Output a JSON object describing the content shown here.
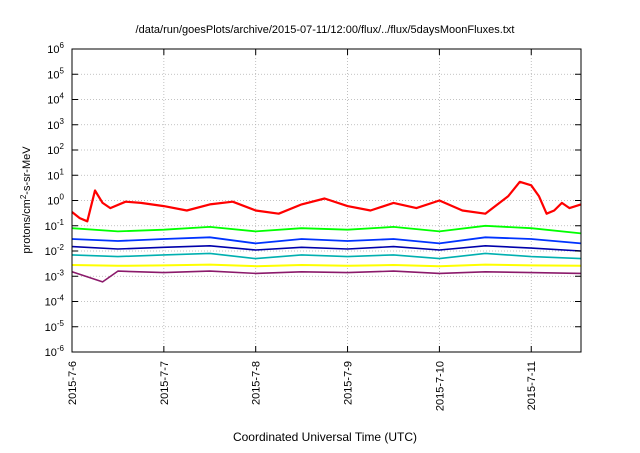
{
  "chart_data": {
    "type": "line",
    "title": "/data/run/goesPlots/archive/2015-07-11/12:00/flux/../flux/5daysMoonFluxes.txt",
    "xlabel": "Coordinated Universal Time (UTC)",
    "ylabel": {
      "prefix": "protons/cm",
      "sup": "2",
      "suffix": "-s-sr-MeV"
    },
    "yscale": "log",
    "ylim": [
      1e-06,
      1000000.0
    ],
    "xlim": [
      "2015-07-06T00:00",
      "2015-07-11T13:00"
    ],
    "grid": true,
    "x_ticks": [
      "2015-7-6",
      "2015-7-7",
      "2015-7-8",
      "2015-7-9",
      "2015-7-10",
      "2015-7-11"
    ],
    "y_ticks": [
      {
        "base": "10",
        "exp": "-6"
      },
      {
        "base": "10",
        "exp": "-5"
      },
      {
        "base": "10",
        "exp": "-4"
      },
      {
        "base": "10",
        "exp": "-3"
      },
      {
        "base": "10",
        "exp": "-2"
      },
      {
        "base": "10",
        "exp": "-1"
      },
      {
        "base": "10",
        "exp": "0"
      },
      {
        "base": "10",
        "exp": "1"
      },
      {
        "base": "10",
        "exp": "2"
      },
      {
        "base": "10",
        "exp": "3"
      },
      {
        "base": "10",
        "exp": "4"
      },
      {
        "base": "10",
        "exp": "5"
      },
      {
        "base": "10",
        "exp": "6"
      }
    ],
    "series": [
      {
        "color": "#ff0000",
        "width": 2.2,
        "x": [
          "2015-07-06T00:00",
          "2015-07-06T02:00",
          "2015-07-06T04:00",
          "2015-07-06T06:00",
          "2015-07-06T08:00",
          "2015-07-06T10:00",
          "2015-07-06T14:00",
          "2015-07-06T18:00",
          "2015-07-07T00:00",
          "2015-07-07T06:00",
          "2015-07-07T12:00",
          "2015-07-07T18:00",
          "2015-07-08T00:00",
          "2015-07-08T06:00",
          "2015-07-08T12:00",
          "2015-07-08T18:00",
          "2015-07-09T00:00",
          "2015-07-09T06:00",
          "2015-07-09T12:00",
          "2015-07-09T18:00",
          "2015-07-10T00:00",
          "2015-07-10T06:00",
          "2015-07-10T12:00",
          "2015-07-10T18:00",
          "2015-07-10T21:00",
          "2015-07-11T00:00",
          "2015-07-11T02:00",
          "2015-07-11T04:00",
          "2015-07-11T06:00",
          "2015-07-11T08:00",
          "2015-07-11T10:00",
          "2015-07-11T13:00"
        ],
        "y": [
          0.35,
          0.2,
          0.15,
          2.5,
          0.8,
          0.5,
          0.9,
          0.8,
          0.6,
          0.4,
          0.7,
          0.9,
          0.4,
          0.3,
          0.7,
          1.2,
          0.6,
          0.4,
          0.8,
          0.5,
          1.0,
          0.4,
          0.3,
          1.5,
          5.5,
          4.0,
          1.5,
          0.3,
          0.4,
          0.8,
          0.5,
          0.7
        ]
      },
      {
        "color": "#00ff00",
        "width": 1.8,
        "x": [
          "2015-07-06T00:00",
          "2015-07-06T12:00",
          "2015-07-07T00:00",
          "2015-07-07T12:00",
          "2015-07-08T00:00",
          "2015-07-08T12:00",
          "2015-07-09T00:00",
          "2015-07-09T12:00",
          "2015-07-10T00:00",
          "2015-07-10T12:00",
          "2015-07-11T00:00",
          "2015-07-11T13:00"
        ],
        "y": [
          0.08,
          0.06,
          0.07,
          0.09,
          0.06,
          0.08,
          0.07,
          0.09,
          0.06,
          0.1,
          0.08,
          0.05
        ]
      },
      {
        "color": "#0033ff",
        "width": 1.8,
        "x": [
          "2015-07-06T00:00",
          "2015-07-06T12:00",
          "2015-07-07T00:00",
          "2015-07-07T12:00",
          "2015-07-08T00:00",
          "2015-07-08T12:00",
          "2015-07-09T00:00",
          "2015-07-09T12:00",
          "2015-07-10T00:00",
          "2015-07-10T12:00",
          "2015-07-11T00:00",
          "2015-07-11T13:00"
        ],
        "y": [
          0.03,
          0.025,
          0.03,
          0.035,
          0.02,
          0.03,
          0.025,
          0.03,
          0.02,
          0.035,
          0.03,
          0.02
        ]
      },
      {
        "color": "#0000aa",
        "width": 1.6,
        "x": [
          "2015-07-06T00:00",
          "2015-07-06T12:00",
          "2015-07-07T00:00",
          "2015-07-07T12:00",
          "2015-07-08T00:00",
          "2015-07-08T12:00",
          "2015-07-09T00:00",
          "2015-07-09T12:00",
          "2015-07-10T00:00",
          "2015-07-10T12:00",
          "2015-07-11T00:00",
          "2015-07-11T13:00"
        ],
        "y": [
          0.015,
          0.012,
          0.014,
          0.016,
          0.011,
          0.014,
          0.012,
          0.015,
          0.011,
          0.016,
          0.013,
          0.01
        ]
      },
      {
        "color": "#00b0b0",
        "width": 1.6,
        "x": [
          "2015-07-06T00:00",
          "2015-07-06T12:00",
          "2015-07-07T00:00",
          "2015-07-07T12:00",
          "2015-07-08T00:00",
          "2015-07-08T12:00",
          "2015-07-09T00:00",
          "2015-07-09T12:00",
          "2015-07-10T00:00",
          "2015-07-10T12:00",
          "2015-07-11T00:00",
          "2015-07-11T13:00"
        ],
        "y": [
          0.007,
          0.006,
          0.007,
          0.008,
          0.005,
          0.007,
          0.006,
          0.007,
          0.005,
          0.008,
          0.006,
          0.005
        ]
      },
      {
        "color": "#ffff00",
        "width": 2.0,
        "x": [
          "2015-07-06T00:00",
          "2015-07-06T12:00",
          "2015-07-07T00:00",
          "2015-07-07T12:00",
          "2015-07-08T00:00",
          "2015-07-08T12:00",
          "2015-07-09T00:00",
          "2015-07-09T12:00",
          "2015-07-10T00:00",
          "2015-07-10T12:00",
          "2015-07-11T00:00",
          "2015-07-11T13:00"
        ],
        "y": [
          0.0028,
          0.0026,
          0.0027,
          0.0029,
          0.0025,
          0.0028,
          0.0026,
          0.0028,
          0.0025,
          0.0029,
          0.0027,
          0.0026
        ]
      },
      {
        "color": "#8b1a6b",
        "width": 1.6,
        "x": [
          "2015-07-06T00:00",
          "2015-07-06T08:00",
          "2015-07-06T12:00",
          "2015-07-07T00:00",
          "2015-07-07T12:00",
          "2015-07-08T00:00",
          "2015-07-08T12:00",
          "2015-07-09T00:00",
          "2015-07-09T12:00",
          "2015-07-10T00:00",
          "2015-07-10T12:00",
          "2015-07-11T00:00",
          "2015-07-11T13:00"
        ],
        "y": [
          0.0015,
          0.0006,
          0.0016,
          0.0014,
          0.0016,
          0.0013,
          0.0015,
          0.0014,
          0.0016,
          0.0013,
          0.0015,
          0.0014,
          0.0013
        ]
      }
    ]
  }
}
